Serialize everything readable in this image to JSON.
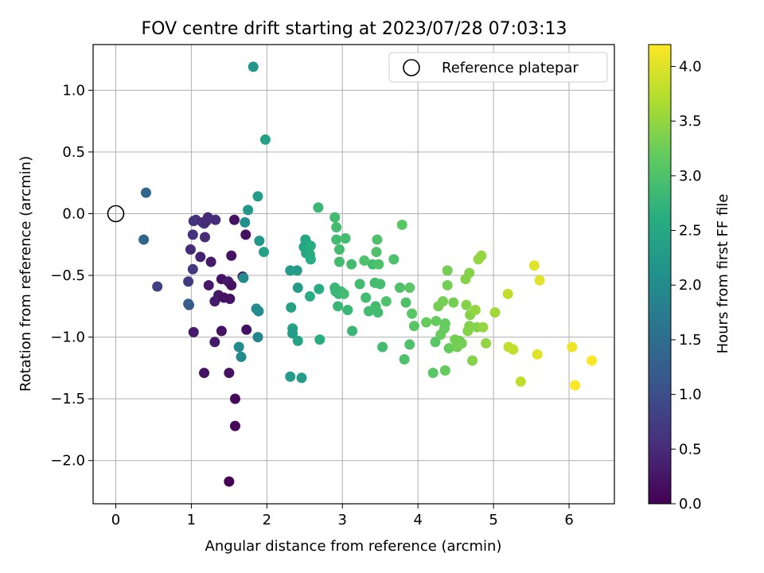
{
  "chart_data": {
    "type": "scatter",
    "title": "FOV centre drift starting at 2023/07/28 07:03:13",
    "xlabel": "Angular distance from reference (arcmin)",
    "ylabel": "Rotation from reference (arcmin)",
    "xlim": [
      -0.3,
      6.6
    ],
    "ylim": [
      -2.35,
      1.37
    ],
    "xticks": [
      0,
      1,
      2,
      3,
      4,
      5,
      6
    ],
    "xtick_labels": [
      "0",
      "1",
      "2",
      "3",
      "4",
      "5",
      "6"
    ],
    "yticks": [
      1.0,
      0.5,
      0.0,
      -0.5,
      -1.0,
      -1.5,
      -2.0
    ],
    "ytick_labels": [
      "1.0",
      "0.5",
      "0.0",
      "−0.5",
      "−1.0",
      "−1.5",
      "−2.0"
    ],
    "grid": true,
    "colormap": "viridis",
    "colorbar": {
      "label": "Hours from first FF file",
      "range": [
        0.0,
        4.2
      ],
      "ticks": [
        0.0,
        0.5,
        1.0,
        1.5,
        2.0,
        2.5,
        3.0,
        3.5,
        4.0
      ],
      "tick_labels": [
        "0.0",
        "0.5",
        "1.0",
        "1.5",
        "2.0",
        "2.5",
        "3.0",
        "3.5",
        "4.0"
      ]
    },
    "legend": {
      "position": "top-right",
      "entries": [
        "Reference platepar"
      ]
    },
    "reference_point": {
      "x": 0.0,
      "y": 0.0
    },
    "series": [
      {
        "points": [
          {
            "x": 0.4,
            "y": 0.17,
            "c": 1.4
          },
          {
            "x": 0.37,
            "y": -0.21,
            "c": 1.4
          },
          {
            "x": 0.55,
            "y": -0.59,
            "c": 0.8
          },
          {
            "x": 0.96,
            "y": -0.73,
            "c": 1.4
          },
          {
            "x": 0.97,
            "y": -0.74,
            "c": 1.2
          },
          {
            "x": 0.96,
            "y": -0.55,
            "c": 0.7
          },
          {
            "x": 0.99,
            "y": -0.29,
            "c": 0.5
          },
          {
            "x": 1.02,
            "y": -0.45,
            "c": 0.7
          },
          {
            "x": 1.02,
            "y": -0.17,
            "c": 0.6
          },
          {
            "x": 1.03,
            "y": -0.06,
            "c": 0.6
          },
          {
            "x": 1.06,
            "y": -0.05,
            "c": 0.6
          },
          {
            "x": 1.03,
            "y": -0.96,
            "c": 0.3
          },
          {
            "x": 1.12,
            "y": -0.35,
            "c": 0.4
          },
          {
            "x": 1.15,
            "y": -0.07,
            "c": 0.5
          },
          {
            "x": 1.17,
            "y": -0.08,
            "c": 0.6
          },
          {
            "x": 1.2,
            "y": -0.06,
            "c": 0.5
          },
          {
            "x": 1.18,
            "y": -0.19,
            "c": 0.5
          },
          {
            "x": 1.22,
            "y": -0.03,
            "c": 0.5
          },
          {
            "x": 1.26,
            "y": -0.39,
            "c": 0.3
          },
          {
            "x": 1.23,
            "y": -0.58,
            "c": 0.3
          },
          {
            "x": 1.17,
            "y": -1.29,
            "c": 0.2
          },
          {
            "x": 1.32,
            "y": -0.05,
            "c": 0.5
          },
          {
            "x": 1.31,
            "y": -0.71,
            "c": 0.3
          },
          {
            "x": 1.31,
            "y": -1.04,
            "c": 0.3
          },
          {
            "x": 1.36,
            "y": -0.66,
            "c": 0.3
          },
          {
            "x": 1.4,
            "y": -0.53,
            "c": 0.2
          },
          {
            "x": 1.43,
            "y": -0.68,
            "c": 0.2
          },
          {
            "x": 1.4,
            "y": -0.95,
            "c": 0.2
          },
          {
            "x": 1.49,
            "y": -0.55,
            "c": 0.3
          },
          {
            "x": 1.51,
            "y": -0.69,
            "c": 0.2
          },
          {
            "x": 1.53,
            "y": -0.34,
            "c": 0.2
          },
          {
            "x": 1.5,
            "y": -1.29,
            "c": 0.2
          },
          {
            "x": 1.57,
            "y": -0.05,
            "c": 0.2
          },
          {
            "x": 1.53,
            "y": -0.58,
            "c": 0.2
          },
          {
            "x": 1.58,
            "y": -1.5,
            "c": 0.1
          },
          {
            "x": 1.58,
            "y": -1.72,
            "c": 0.1
          },
          {
            "x": 1.5,
            "y": -2.17,
            "c": 0.0
          },
          {
            "x": 1.68,
            "y": -0.51,
            "c": 0.1
          },
          {
            "x": 1.72,
            "y": -0.17,
            "c": 0.2
          },
          {
            "x": 1.73,
            "y": -0.94,
            "c": 0.2
          },
          {
            "x": 1.63,
            "y": -1.08,
            "c": 2.0
          },
          {
            "x": 1.66,
            "y": -1.16,
            "c": 2.0
          },
          {
            "x": 1.69,
            "y": -0.52,
            "c": 2.0
          },
          {
            "x": 1.71,
            "y": -0.07,
            "c": 2.1
          },
          {
            "x": 1.75,
            "y": 0.03,
            "c": 2.2
          },
          {
            "x": 1.82,
            "y": 1.19,
            "c": 2.2
          },
          {
            "x": 1.86,
            "y": -0.77,
            "c": 2.0
          },
          {
            "x": 1.89,
            "y": -0.79,
            "c": 2.0
          },
          {
            "x": 1.88,
            "y": -1.0,
            "c": 1.9
          },
          {
            "x": 1.88,
            "y": 0.14,
            "c": 2.3
          },
          {
            "x": 1.9,
            "y": -0.22,
            "c": 2.2
          },
          {
            "x": 1.96,
            "y": -0.31,
            "c": 2.4
          },
          {
            "x": 1.98,
            "y": 0.6,
            "c": 2.4
          },
          {
            "x": 2.31,
            "y": -0.46,
            "c": 2.3
          },
          {
            "x": 2.32,
            "y": -0.76,
            "c": 2.4
          },
          {
            "x": 2.31,
            "y": -1.32,
            "c": 2.3
          },
          {
            "x": 2.34,
            "y": -0.93,
            "c": 2.4
          },
          {
            "x": 2.34,
            "y": -0.97,
            "c": 2.3
          },
          {
            "x": 2.4,
            "y": -0.46,
            "c": 2.3
          },
          {
            "x": 2.41,
            "y": -0.6,
            "c": 2.3
          },
          {
            "x": 2.41,
            "y": -1.03,
            "c": 2.4
          },
          {
            "x": 2.46,
            "y": -1.33,
            "c": 2.3
          },
          {
            "x": 2.49,
            "y": -0.27,
            "c": 2.5
          },
          {
            "x": 2.51,
            "y": -0.21,
            "c": 2.5
          },
          {
            "x": 2.52,
            "y": -0.32,
            "c": 2.5
          },
          {
            "x": 2.53,
            "y": -0.24,
            "c": 2.5
          },
          {
            "x": 2.55,
            "y": -0.29,
            "c": 2.5
          },
          {
            "x": 2.57,
            "y": -0.33,
            "c": 2.6
          },
          {
            "x": 2.58,
            "y": -0.37,
            "c": 2.6
          },
          {
            "x": 2.58,
            "y": -0.26,
            "c": 2.6
          },
          {
            "x": 2.57,
            "y": -0.67,
            "c": 2.6
          },
          {
            "x": 2.68,
            "y": 0.05,
            "c": 2.8
          },
          {
            "x": 2.69,
            "y": -0.61,
            "c": 2.6
          },
          {
            "x": 2.7,
            "y": -1.02,
            "c": 2.6
          },
          {
            "x": 2.9,
            "y": -0.03,
            "c": 2.9
          },
          {
            "x": 2.92,
            "y": -0.11,
            "c": 2.9
          },
          {
            "x": 2.92,
            "y": -0.21,
            "c": 2.9
          },
          {
            "x": 2.9,
            "y": -0.6,
            "c": 2.8
          },
          {
            "x": 2.91,
            "y": -0.63,
            "c": 2.8
          },
          {
            "x": 2.95,
            "y": -0.65,
            "c": 2.8
          },
          {
            "x": 2.96,
            "y": -0.39,
            "c": 2.9
          },
          {
            "x": 2.96,
            "y": -0.29,
            "c": 2.9
          },
          {
            "x": 2.94,
            "y": -0.75,
            "c": 2.8
          },
          {
            "x": 2.98,
            "y": -0.63,
            "c": 2.8
          },
          {
            "x": 3.02,
            "y": -0.65,
            "c": 2.9
          },
          {
            "x": 3.04,
            "y": -0.2,
            "c": 2.9
          },
          {
            "x": 3.07,
            "y": -0.78,
            "c": 2.8
          },
          {
            "x": 3.12,
            "y": -0.41,
            "c": 2.9
          },
          {
            "x": 3.13,
            "y": -0.95,
            "c": 2.8
          },
          {
            "x": 3.23,
            "y": -0.57,
            "c": 2.9
          },
          {
            "x": 3.29,
            "y": -0.38,
            "c": 3.0
          },
          {
            "x": 3.31,
            "y": -0.68,
            "c": 2.9
          },
          {
            "x": 3.35,
            "y": -0.79,
            "c": 2.9
          },
          {
            "x": 3.4,
            "y": -0.41,
            "c": 2.9
          },
          {
            "x": 3.43,
            "y": -0.56,
            "c": 2.9
          },
          {
            "x": 3.45,
            "y": -0.31,
            "c": 3.0
          },
          {
            "x": 3.46,
            "y": -0.21,
            "c": 3.0
          },
          {
            "x": 3.44,
            "y": -0.75,
            "c": 2.9
          },
          {
            "x": 3.47,
            "y": -0.8,
            "c": 2.9
          },
          {
            "x": 3.48,
            "y": -0.41,
            "c": 3.0
          },
          {
            "x": 3.5,
            "y": -0.57,
            "c": 2.9
          },
          {
            "x": 3.53,
            "y": -1.08,
            "c": 2.9
          },
          {
            "x": 3.58,
            "y": -0.71,
            "c": 3.0
          },
          {
            "x": 3.68,
            "y": -0.37,
            "c": 3.0
          },
          {
            "x": 3.76,
            "y": -0.6,
            "c": 3.0
          },
          {
            "x": 3.79,
            "y": -0.09,
            "c": 3.1
          },
          {
            "x": 3.82,
            "y": -1.18,
            "c": 3.0
          },
          {
            "x": 3.84,
            "y": -0.72,
            "c": 3.0
          },
          {
            "x": 3.89,
            "y": -0.6,
            "c": 3.1
          },
          {
            "x": 3.89,
            "y": -1.06,
            "c": 3.0
          },
          {
            "x": 3.92,
            "y": -0.81,
            "c": 3.1
          },
          {
            "x": 3.95,
            "y": -0.91,
            "c": 3.1
          },
          {
            "x": 4.11,
            "y": -0.88,
            "c": 3.2
          },
          {
            "x": 4.2,
            "y": -1.29,
            "c": 3.1
          },
          {
            "x": 4.23,
            "y": -1.04,
            "c": 3.1
          },
          {
            "x": 4.24,
            "y": -0.87,
            "c": 3.2
          },
          {
            "x": 4.27,
            "y": -0.75,
            "c": 3.3
          },
          {
            "x": 4.3,
            "y": -0.98,
            "c": 3.2
          },
          {
            "x": 4.33,
            "y": -0.71,
            "c": 3.3
          },
          {
            "x": 4.35,
            "y": -0.93,
            "c": 3.2
          },
          {
            "x": 4.36,
            "y": -0.89,
            "c": 3.2
          },
          {
            "x": 4.36,
            "y": -1.27,
            "c": 3.2
          },
          {
            "x": 4.39,
            "y": -0.46,
            "c": 3.3
          },
          {
            "x": 4.39,
            "y": -0.58,
            "c": 3.3
          },
          {
            "x": 4.41,
            "y": -1.09,
            "c": 3.2
          },
          {
            "x": 4.47,
            "y": -0.72,
            "c": 3.3
          },
          {
            "x": 4.49,
            "y": -1.02,
            "c": 3.3
          },
          {
            "x": 4.52,
            "y": -1.08,
            "c": 3.3
          },
          {
            "x": 4.55,
            "y": -1.03,
            "c": 3.3
          },
          {
            "x": 4.58,
            "y": -1.05,
            "c": 3.3
          },
          {
            "x": 4.63,
            "y": -0.53,
            "c": 3.4
          },
          {
            "x": 4.64,
            "y": -0.74,
            "c": 3.4
          },
          {
            "x": 4.66,
            "y": -0.95,
            "c": 3.4
          },
          {
            "x": 4.68,
            "y": -0.48,
            "c": 3.4
          },
          {
            "x": 4.68,
            "y": -0.91,
            "c": 3.4
          },
          {
            "x": 4.69,
            "y": -0.82,
            "c": 3.4
          },
          {
            "x": 4.72,
            "y": -1.19,
            "c": 3.4
          },
          {
            "x": 4.76,
            "y": -0.78,
            "c": 3.5
          },
          {
            "x": 4.78,
            "y": -0.92,
            "c": 3.4
          },
          {
            "x": 4.8,
            "y": -0.37,
            "c": 3.5
          },
          {
            "x": 4.84,
            "y": -0.34,
            "c": 3.5
          },
          {
            "x": 4.86,
            "y": -0.92,
            "c": 3.5
          },
          {
            "x": 4.9,
            "y": -1.05,
            "c": 3.5
          },
          {
            "x": 5.02,
            "y": -0.8,
            "c": 3.6
          },
          {
            "x": 5.19,
            "y": -0.65,
            "c": 3.8
          },
          {
            "x": 5.2,
            "y": -1.08,
            "c": 3.8
          },
          {
            "x": 5.26,
            "y": -1.1,
            "c": 3.8
          },
          {
            "x": 5.36,
            "y": -1.36,
            "c": 3.8
          },
          {
            "x": 5.54,
            "y": -0.42,
            "c": 4.0
          },
          {
            "x": 5.58,
            "y": -1.14,
            "c": 4.0
          },
          {
            "x": 5.61,
            "y": -0.54,
            "c": 4.0
          },
          {
            "x": 6.04,
            "y": -1.08,
            "c": 4.1
          },
          {
            "x": 6.08,
            "y": -1.39,
            "c": 4.2
          },
          {
            "x": 6.3,
            "y": -1.19,
            "c": 4.2
          }
        ]
      }
    ]
  }
}
